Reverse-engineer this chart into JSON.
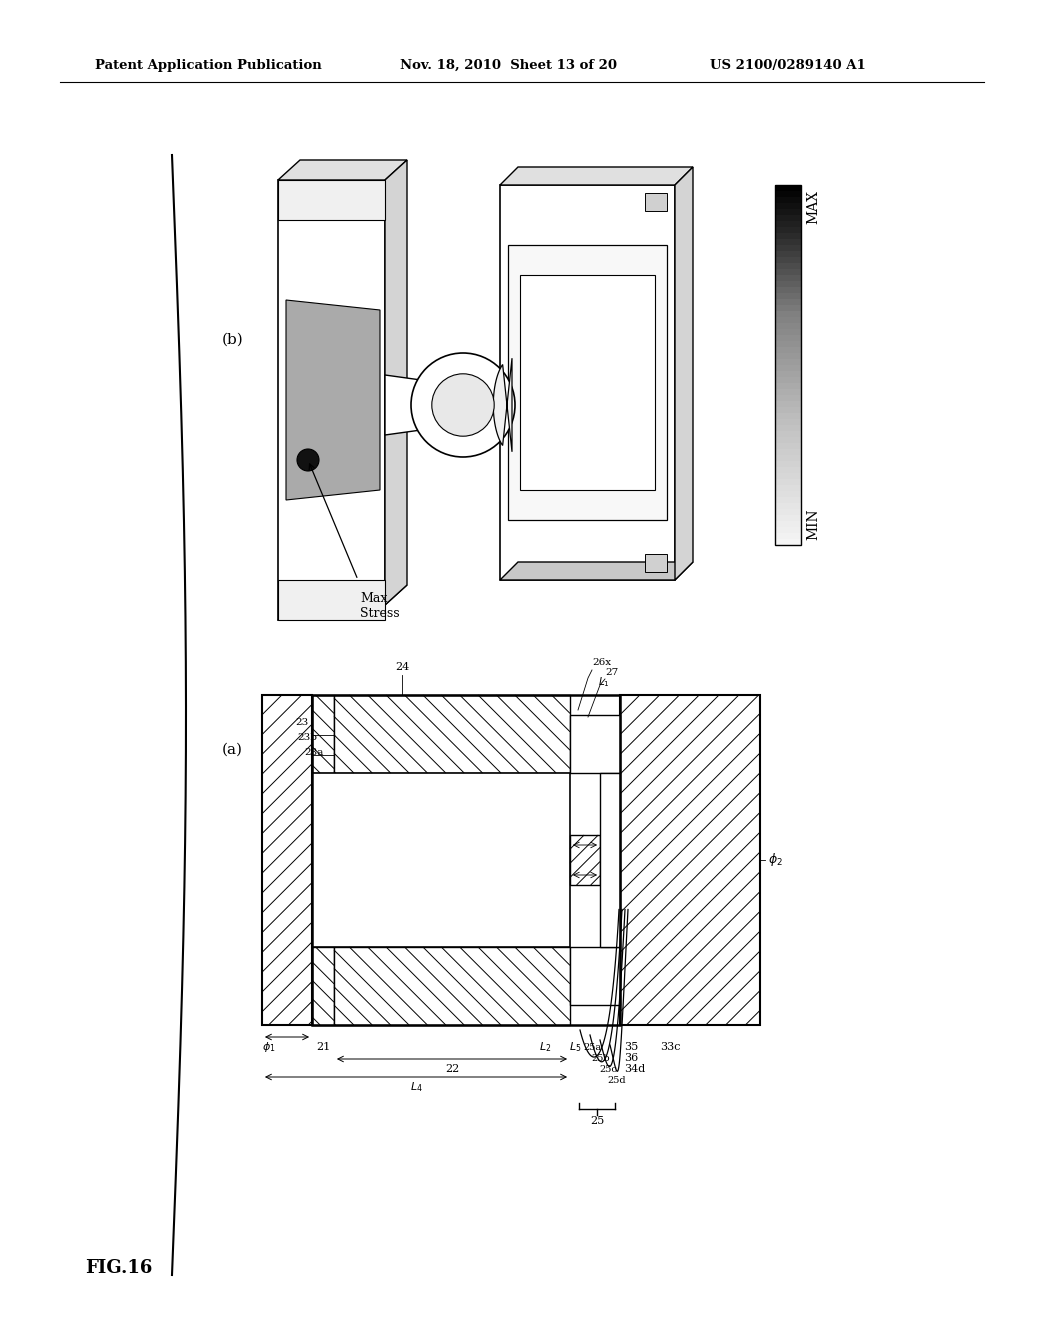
{
  "header_left": "Patent Application Publication",
  "header_mid": "Nov. 18, 2010  Sheet 13 of 20",
  "header_right": "US 2100/0289140 A1",
  "fig_label": "FIG.16",
  "sub_a_label": "(a)",
  "sub_b_label": "(b)",
  "bg_color": "#ffffff",
  "colorbar_max_label": "MAX",
  "colorbar_min_label": "MIN",
  "max_stress_label": "Max\nStress"
}
